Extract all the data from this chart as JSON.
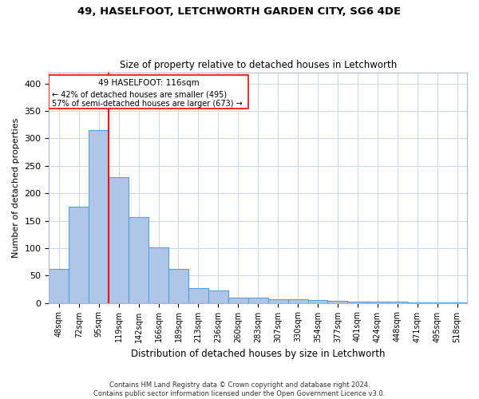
{
  "title1": "49, HASELFOOT, LETCHWORTH GARDEN CITY, SG6 4DE",
  "title2": "Size of property relative to detached houses in Letchworth",
  "xlabel": "Distribution of detached houses by size in Letchworth",
  "ylabel": "Number of detached properties",
  "categories": [
    "48sqm",
    "72sqm",
    "95sqm",
    "119sqm",
    "142sqm",
    "166sqm",
    "189sqm",
    "213sqm",
    "236sqm",
    "260sqm",
    "283sqm",
    "307sqm",
    "330sqm",
    "354sqm",
    "377sqm",
    "401sqm",
    "424sqm",
    "448sqm",
    "471sqm",
    "495sqm",
    "518sqm"
  ],
  "values": [
    62,
    175,
    315,
    230,
    157,
    102,
    62,
    27,
    22,
    10,
    10,
    7,
    6,
    5,
    4,
    3,
    2,
    2,
    1,
    1,
    1
  ],
  "bar_color": "#aec6e8",
  "bar_edge_color": "#5a9fd4",
  "red_line_index": 3,
  "annotation_text1": "49 HASELFOOT: 116sqm",
  "annotation_text2": "← 42% of detached houses are smaller (495)",
  "annotation_text3": "57% of semi-detached houses are larger (673) →",
  "footer1": "Contains HM Land Registry data © Crown copyright and database right 2024.",
  "footer2": "Contains public sector information licensed under the Open Government Licence v3.0.",
  "ylim": [
    0,
    420
  ],
  "yticks": [
    0,
    50,
    100,
    150,
    200,
    250,
    300,
    350,
    400
  ],
  "bg_color": "#ffffff",
  "grid_color": "#d0d8e8"
}
